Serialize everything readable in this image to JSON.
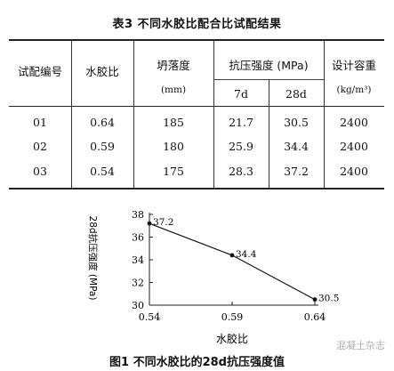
{
  "table": {
    "title": "表3 不同水胶比配合比试配结果",
    "headers": {
      "id": "试配编号",
      "wb": "水胶比",
      "slump": "坍落度",
      "slump_unit": "(mm)",
      "strength": "抗压强度 (MPa)",
      "d7": "7d",
      "d28": "28d",
      "density": "设计容重",
      "density_unit": "(kg/m³)"
    },
    "rows": [
      {
        "id": "01",
        "wb": "0.64",
        "slump": "185",
        "d7": "21.7",
        "d28": "30.5",
        "density": "2400"
      },
      {
        "id": "02",
        "wb": "0.59",
        "slump": "180",
        "d7": "25.9",
        "d28": "34.4",
        "density": "2400"
      },
      {
        "id": "03",
        "wb": "0.54",
        "slump": "175",
        "d7": "28.3",
        "d28": "37.2",
        "density": "2400"
      }
    ]
  },
  "chart_data": {
    "type": "line",
    "xlabel": "水胶比",
    "ylabel": "28d抗压强度 (MPa)",
    "x": [
      0.54,
      0.59,
      0.64
    ],
    "x_ticks": [
      "0.54",
      "0.59",
      "0.64"
    ],
    "y_ticks": [
      "30",
      "32",
      "34",
      "36",
      "38"
    ],
    "ylim": [
      30,
      38
    ],
    "xlim": [
      0.54,
      0.64
    ],
    "series": [
      {
        "values": [
          37.2,
          34.4,
          30.5
        ],
        "labels": [
          "37.2",
          "34.4",
          "30.5"
        ]
      }
    ],
    "color": "#111111"
  },
  "figure": {
    "caption": "图1 不同水胶比的28d抗压强度值"
  },
  "watermark": "混凝土杂志"
}
